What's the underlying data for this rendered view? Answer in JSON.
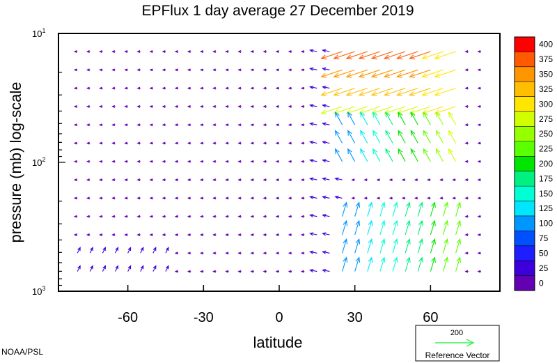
{
  "chart_data": {
    "type": "vector-field",
    "title": "EPFlux  1 day average  27 December  2019",
    "xlabel": "latitude",
    "ylabel": "pressure (mb)  log-scale",
    "x_ticks": [
      -60,
      -30,
      0,
      30,
      60
    ],
    "x_tick_labels": [
      "-60",
      "-30",
      "0",
      "30",
      "60"
    ],
    "xlim": [
      -87.5,
      87.5
    ],
    "y_scale": "log",
    "ylim": [
      1000,
      10
    ],
    "y_ticks": [
      {
        "value": 10,
        "base": "10",
        "exponent": "1"
      },
      {
        "value": 100,
        "base": "10",
        "exponent": "2"
      },
      {
        "value": 1000,
        "base": "10",
        "exponent": "3"
      }
    ],
    "colorbar": {
      "levels": [
        "400",
        "375",
        "350",
        "325",
        "300",
        "275",
        "250",
        "225",
        "200",
        "175",
        "150",
        "125",
        "100",
        "75",
        "50",
        "25",
        "0"
      ],
      "colors": [
        "#ff0000",
        "#ff5a00",
        "#ff9600",
        "#ffbe00",
        "#ffe600",
        "#d2ff00",
        "#96ff00",
        "#5aff00",
        "#00e600",
        "#00f082",
        "#00ffd2",
        "#00e6ff",
        "#0096ff",
        "#0050ff",
        "#1e1eff",
        "#3c00dc",
        "#6400b4"
      ]
    },
    "reference_vector": {
      "magnitude": "200",
      "label": "Reference Vector",
      "color": "#3cf05a"
    },
    "credit": "NOAA/PSL",
    "vectors_description": "weak blue vectors across most of the domain; strong poleward-upward vectors 25N-70N near 10-30 mb (red/yellow) and 200-1000 mb (green/cyan)"
  }
}
